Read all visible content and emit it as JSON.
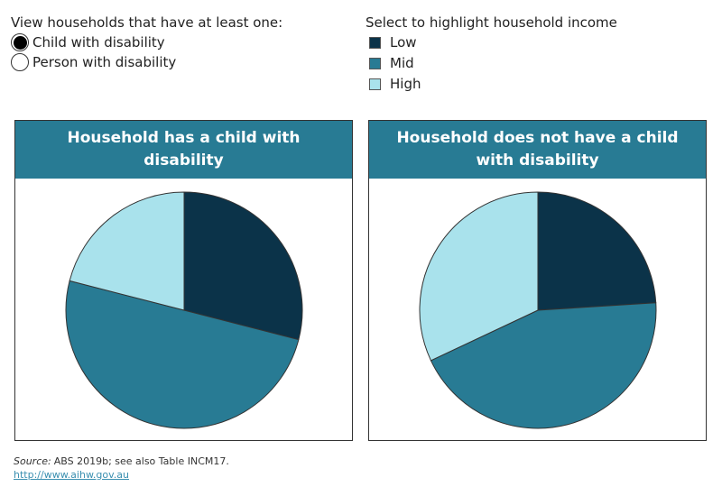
{
  "controls": {
    "title": "View households that have at least one:",
    "options": [
      {
        "label": "Child with disability",
        "selected": true
      },
      {
        "label": "Person with disability",
        "selected": false
      }
    ]
  },
  "legend": {
    "title": "Select to highlight household income",
    "items": [
      {
        "label": "Low",
        "color": "#0b3349"
      },
      {
        "label": "Mid",
        "color": "#287b94"
      },
      {
        "label": "High",
        "color": "#a9e2ec"
      }
    ]
  },
  "chart_data": [
    {
      "type": "pie",
      "title": "Household has a child with disability",
      "categories": [
        "Low",
        "Mid",
        "High"
      ],
      "values": [
        29,
        50,
        21
      ]
    },
    {
      "type": "pie",
      "title": "Household does not have a child with disability",
      "categories": [
        "Low",
        "Mid",
        "High"
      ],
      "values": [
        24,
        44,
        32
      ]
    }
  ],
  "footer": {
    "source_label": "Source:",
    "source_text": "ABS 2019b; see also Table INCM17.",
    "link": "http://www.aihw.gov.au"
  }
}
